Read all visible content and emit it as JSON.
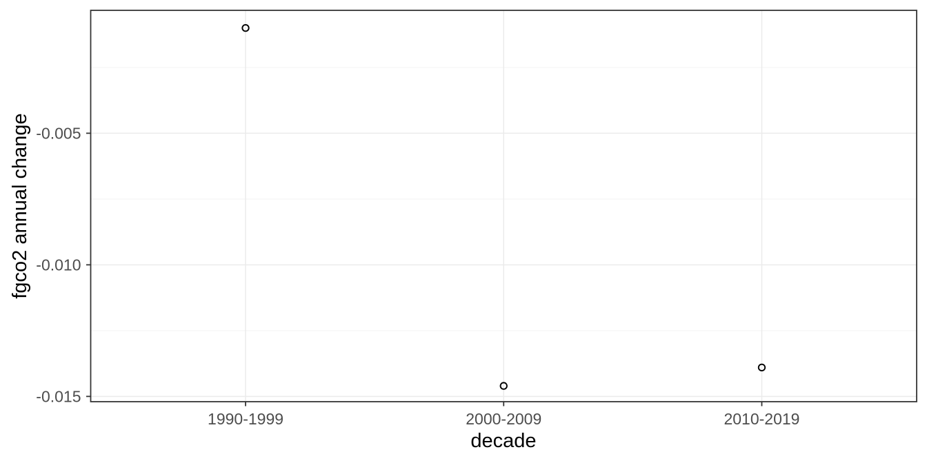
{
  "chart_data": {
    "type": "scatter",
    "title": "",
    "xlabel": "decade",
    "ylabel": "fgco2 annual change",
    "categories": [
      "1990-1999",
      "2000-2009",
      "2010-2019"
    ],
    "values": [
      -0.001,
      -0.0146,
      -0.0139
    ],
    "ylim": [
      -0.0152,
      -0.00033
    ],
    "y_major_ticks": [
      -0.005,
      -0.01,
      -0.015
    ],
    "y_tick_labels": [
      "-0.005",
      "-0.010",
      "-0.015"
    ],
    "y_minor_ticks": [
      -0.0025,
      -0.0075,
      -0.0125
    ],
    "x_axis_type": "discrete",
    "grid": "on",
    "legend": "none",
    "point_style": "open-circle",
    "colors": {
      "background": "#FFFFFF",
      "panel_background": "#FFFFFF",
      "grid_major": "#EBEBEB",
      "grid_minor": "#F3F3F3",
      "panel_border": "#343434",
      "tick_mark": "#343434",
      "tick_label": "#4D4D4D",
      "axis_title": "#000000",
      "point": "#000000"
    }
  }
}
